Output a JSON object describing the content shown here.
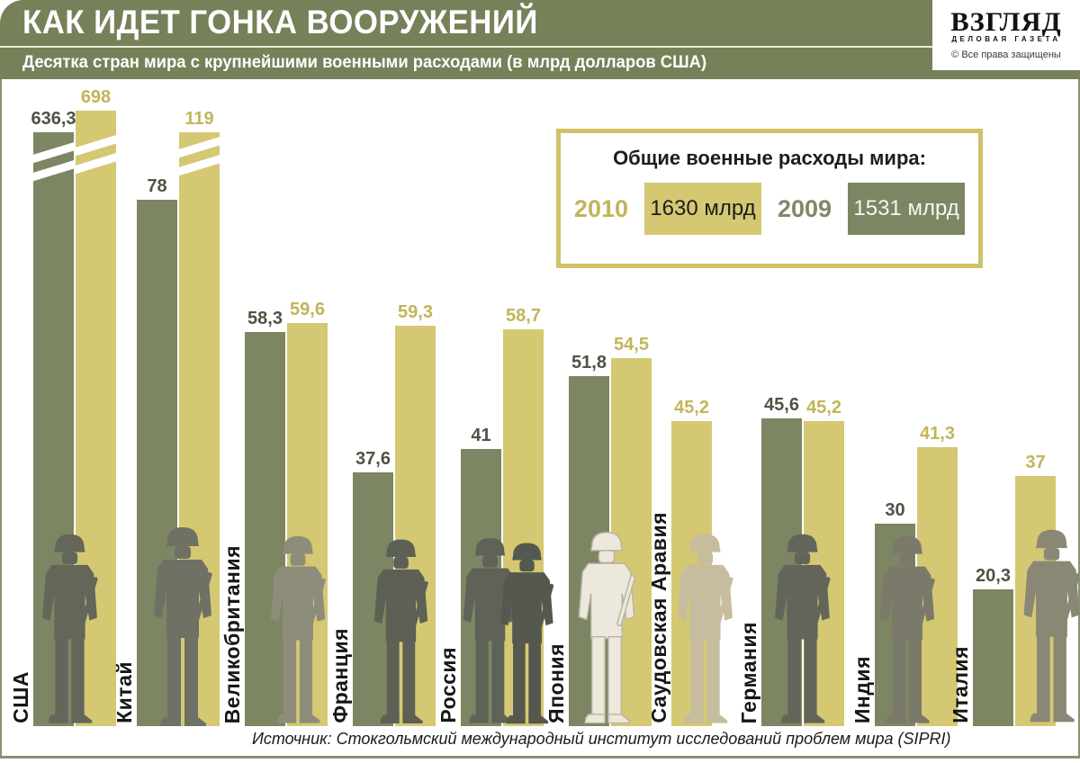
{
  "header": {
    "title": "КАК ИДЕТ ГОНКА ВООРУЖЕНИЙ",
    "subtitle": "Десятка стран мира с крупнейшими военными расходами (в млрд долларов США)"
  },
  "logo": {
    "name": "ВЗГЛЯД",
    "tagline": "ДЕЛОВАЯ ГАЗЕТА",
    "copyright": "© Все права защищены"
  },
  "legend": {
    "title": "Общие военные расходы мира:",
    "items": [
      {
        "year": "2010",
        "value": "1630 млрд",
        "swatch": "#D4C873"
      },
      {
        "year": "2009",
        "value": "1531 млрд",
        "swatch": "#7C8663"
      }
    ]
  },
  "footer": {
    "source": "Источник: Стокгольмский международный институт исследований проблем мира (SIPRI)"
  },
  "colors": {
    "header_olive": "#76815A",
    "bar_2009_green": "#7C8663",
    "bar_2010_khaki": "#D4C873",
    "value_text_2009": "#4E5342",
    "value_text_2010": "#C2B559",
    "legend_border": "#CFC26B",
    "frame_border": "#8B9272"
  },
  "chart_data": {
    "type": "bar",
    "title": "КАК ИДЕТ ГОНКА ВООРУЖЕНИЙ",
    "subtitle": "Десятка стран мира с крупнейшими военными расходами (в млрд долларов США)",
    "unit": "млрд долларов США",
    "categories": [
      "США",
      "Китай",
      "Великобритания",
      "Франция",
      "Россия",
      "Япония",
      "Саудовская Аравия",
      "Германия",
      "Индия",
      "Италия"
    ],
    "series": [
      {
        "name": "2009",
        "color": "#7C8663",
        "values": [
          636.3,
          78,
          58.3,
          37.6,
          41,
          51.8,
          null,
          45.6,
          30,
          20.3
        ]
      },
      {
        "name": "2010",
        "color": "#D4C873",
        "values": [
          698,
          119,
          59.6,
          59.3,
          58.7,
          54.5,
          45.2,
          45.2,
          41.3,
          37
        ]
      }
    ],
    "value_labels": {
      "2009": [
        "636,3",
        "78",
        "58,3",
        "37,6",
        "41",
        "51,8",
        "",
        "45,6",
        "30",
        "20,3"
      ],
      "2010": [
        "698",
        "119",
        "59,6",
        "59,3",
        "58,7",
        "54,5",
        "45,2",
        "45,2",
        "41,3",
        "37"
      ]
    },
    "world_totals": {
      "2010": "1630 млрд",
      "2009": "1531 млрд"
    },
    "axis_break_bars": [
      "США-2009",
      "США-2010",
      "Китай-2010"
    ],
    "legend_position": "top-right",
    "grid": false
  }
}
